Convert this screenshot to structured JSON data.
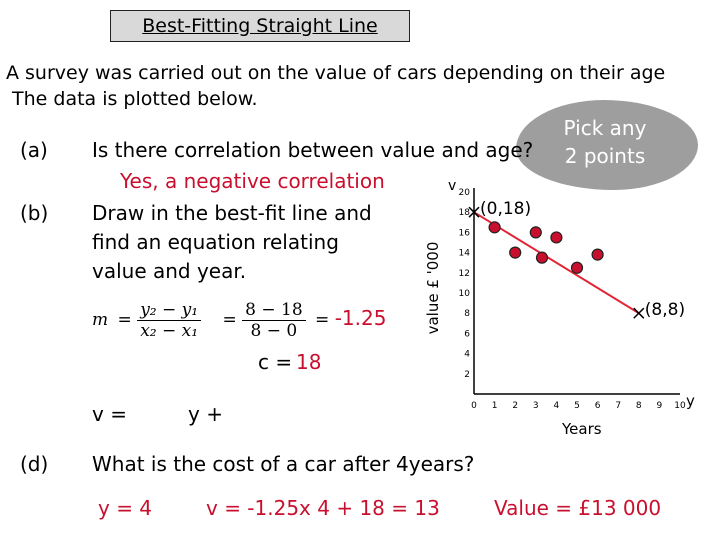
{
  "title": "Best-Fitting Straight Line",
  "intro": [
    "A survey was carried out on the value of cars depending on their age",
    "The data is plotted below."
  ],
  "questions": {
    "a": {
      "label": "(a)",
      "text": "Is there correlation between value and age?",
      "answer": "Yes, a negative correlation"
    },
    "b": {
      "label": "(b)",
      "line1": "Draw in the best-fit line and",
      "line2": "find an equation relating",
      "line3": "value and year."
    },
    "d": {
      "label": "(d)",
      "text": "What is the cost of a car after 4years?",
      "given": "y = 4",
      "working": "v = -1.25x 4 + 18 = 13",
      "answer": "Value = £13 000"
    }
  },
  "bubble": {
    "line1": "Pick any",
    "line2": "2  points"
  },
  "gradient": {
    "m": "m",
    "num_sym": "y₂ − y₁",
    "den_sym": "x₂ − x₁",
    "num_val": "8 − 18",
    "den_val": "8 − 0",
    "eq": "=",
    "result": "-1.25"
  },
  "intercept": {
    "label": "c = ",
    "value": "18"
  },
  "equation": {
    "v": "v =",
    "y": "y +"
  },
  "chart_data": {
    "type": "scatter",
    "ylabel": "value £ '000",
    "y_axis_letter": "v",
    "xlabel": "Years",
    "x_axis_letter": "y",
    "xlim": [
      0,
      10
    ],
    "ylim": [
      0,
      20
    ],
    "x_ticks": [
      0,
      1,
      2,
      3,
      4,
      5,
      6,
      7,
      8,
      9,
      10
    ],
    "y_ticks": [
      2,
      4,
      6,
      8,
      10,
      12,
      14,
      16,
      18,
      20
    ],
    "points": [
      {
        "x": 1,
        "y": 16.5
      },
      {
        "x": 2,
        "y": 14
      },
      {
        "x": 3,
        "y": 16
      },
      {
        "x": 3.3,
        "y": 13.5
      },
      {
        "x": 4,
        "y": 15.5
      },
      {
        "x": 5,
        "y": 12.5
      },
      {
        "x": 6,
        "y": 13.8
      }
    ],
    "best_fit": {
      "from": {
        "x": 0,
        "y": 18
      },
      "to": {
        "x": 8,
        "y": 8
      }
    },
    "marked_points": [
      {
        "x": 0,
        "y": 18,
        "label": "(0,18)"
      },
      {
        "x": 8,
        "y": 8,
        "label": "(8,8)"
      }
    ],
    "colors": {
      "points": "#c8102e",
      "line": "#e32636",
      "axes": "#000000"
    }
  }
}
